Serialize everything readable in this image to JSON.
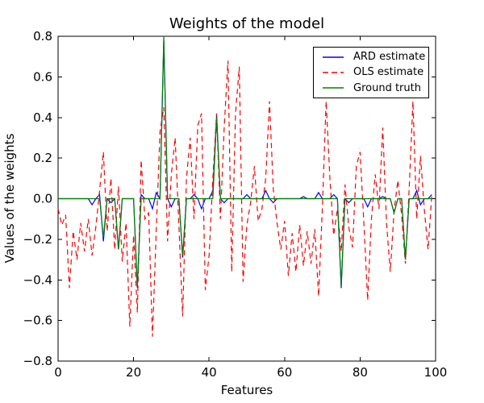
{
  "title": "Weights of the model",
  "axes": {
    "xlabel": "Features",
    "ylabel": "Values of the weights",
    "xticks": [
      "0",
      "20",
      "40",
      "60",
      "80",
      "100"
    ],
    "xtick_values": [
      0,
      20,
      40,
      60,
      80,
      100
    ],
    "yticks": [
      "0.8",
      "0.6",
      "0.4",
      "0.2",
      "0.0",
      "−0.2",
      "−0.4",
      "−0.6",
      "−0.8"
    ],
    "ytick_values": [
      0.8,
      0.6,
      0.4,
      0.2,
      0.0,
      -0.2,
      -0.4,
      -0.6,
      -0.8
    ]
  },
  "legend": {
    "position": "upper right",
    "entries": [
      "ARD estimate",
      "OLS estimate",
      "Ground truth"
    ]
  },
  "chart_data": {
    "type": "line",
    "title": "Weights of the model",
    "xlabel": "Features",
    "ylabel": "Values of the weights",
    "xlim": [
      0,
      100
    ],
    "ylim": [
      -0.8,
      0.8
    ],
    "grid": false,
    "legend_position": "upper right",
    "x": [
      0,
      1,
      2,
      3,
      4,
      5,
      6,
      7,
      8,
      9,
      10,
      11,
      12,
      13,
      14,
      15,
      16,
      17,
      18,
      19,
      20,
      21,
      22,
      23,
      24,
      25,
      26,
      27,
      28,
      29,
      30,
      31,
      32,
      33,
      34,
      35,
      36,
      37,
      38,
      39,
      40,
      41,
      42,
      43,
      44,
      45,
      46,
      47,
      48,
      49,
      50,
      51,
      52,
      53,
      54,
      55,
      56,
      57,
      58,
      59,
      60,
      61,
      62,
      63,
      64,
      65,
      66,
      67,
      68,
      69,
      70,
      71,
      72,
      73,
      74,
      75,
      76,
      77,
      78,
      79,
      80,
      81,
      82,
      83,
      84,
      85,
      86,
      87,
      88,
      89,
      90,
      91,
      92,
      93,
      94,
      95,
      96,
      97,
      98,
      99
    ],
    "series": [
      {
        "name": "ARD estimate",
        "color": "#0000ff",
        "style": "solid",
        "values": [
          0,
          0,
          0,
          0,
          0,
          0,
          0,
          0,
          0,
          -0.03,
          0,
          0.02,
          -0.21,
          0,
          -0.02,
          0,
          -0.25,
          0,
          0,
          0,
          0,
          -0.44,
          0.02,
          0,
          0,
          -0.05,
          0.03,
          0,
          0.78,
          0,
          -0.04,
          0,
          0,
          -0.29,
          0,
          0,
          0.02,
          0,
          -0.05,
          0,
          0,
          0.04,
          0.41,
          0,
          -0.02,
          0,
          0,
          0,
          0,
          0,
          0.02,
          0,
          0,
          0,
          0,
          0.04,
          0,
          -0.02,
          0,
          0,
          0,
          0,
          0,
          0,
          0,
          0.01,
          0,
          0,
          0,
          0.03,
          0,
          0,
          0,
          0.02,
          0,
          -0.44,
          0,
          -0.02,
          0,
          0,
          0,
          0,
          -0.04,
          0,
          0,
          0,
          0.01,
          0,
          0,
          -0.07,
          0,
          0,
          -0.3,
          0,
          0,
          0.04,
          -0.03,
          0,
          0,
          0.02
        ]
      },
      {
        "name": "OLS estimate",
        "color": "#ff0000",
        "style": "dashed",
        "values": [
          -0.05,
          -0.13,
          -0.08,
          -0.44,
          -0.16,
          -0.3,
          -0.12,
          -0.26,
          -0.1,
          -0.28,
          -0.14,
          0.04,
          0.23,
          -0.16,
          0.1,
          -0.25,
          0.06,
          -0.31,
          -0.12,
          -0.63,
          -0.18,
          -0.56,
          0.19,
          -0.1,
          -0.07,
          -0.68,
          -0.16,
          0.33,
          0.45,
          -0.21,
          0.12,
          0.3,
          -0.13,
          -0.58,
          0.1,
          0.3,
          -0.1,
          0.36,
          0.42,
          -0.45,
          -0.28,
          0.1,
          0.42,
          -0.1,
          0.35,
          0.68,
          -0.36,
          0.42,
          0.65,
          -0.41,
          -0.13,
          -0.02,
          0.16,
          -0.11,
          -0.05,
          0.1,
          0.48,
          0.05,
          -0.12,
          -0.25,
          -0.11,
          -0.38,
          -0.17,
          -0.36,
          -0.13,
          -0.33,
          -0.16,
          -0.32,
          -0.15,
          -0.48,
          -0.05,
          0.48,
          0.1,
          -0.18,
          -0.05,
          -0.26,
          0.07,
          -0.14,
          -0.24,
          0.16,
          0.23,
          -0.12,
          -0.5,
          -0.1,
          0.12,
          -0.05,
          0.35,
          -0.12,
          -0.36,
          -0.06,
          0.09,
          -0.08,
          -0.32,
          0.05,
          0.48,
          -0.1,
          0.21,
          -0.05,
          -0.25,
          0.02
        ]
      },
      {
        "name": "Ground truth",
        "color": "#008000",
        "style": "solid",
        "values": [
          0,
          0,
          0,
          0,
          0,
          0,
          0,
          0,
          0,
          0,
          0,
          0,
          -0.19,
          0,
          0,
          0,
          -0.25,
          0,
          0,
          0,
          0,
          -0.43,
          0,
          0,
          0,
          0,
          0,
          0,
          0.8,
          0,
          0,
          0,
          0,
          -0.28,
          0,
          0,
          0,
          0,
          0,
          0,
          0,
          0,
          0.4,
          0,
          0,
          0,
          0,
          0,
          0,
          0,
          0,
          0,
          0,
          0,
          0,
          0,
          0,
          0,
          0,
          0,
          0,
          0,
          0,
          0,
          0,
          0,
          0,
          0,
          0,
          0,
          0,
          0,
          0,
          0,
          0,
          -0.43,
          0,
          0,
          0,
          0,
          0,
          0,
          0,
          0,
          0,
          0,
          0,
          0,
          0,
          -0.07,
          0,
          0,
          -0.3,
          0,
          0,
          0,
          0,
          0,
          0,
          0
        ]
      }
    ]
  }
}
